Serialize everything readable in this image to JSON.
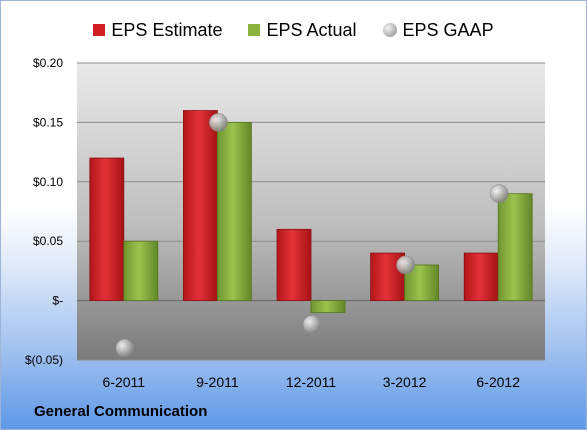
{
  "legend": {
    "estimate": "EPS Estimate",
    "actual": "EPS Actual",
    "gaap": "EPS GAAP"
  },
  "company": "General Communication",
  "colors": {
    "estimate": "#d11f23",
    "actual": "#8bb43f",
    "gaap": "#a9a9a9"
  },
  "chart_data": {
    "type": "bar",
    "categories": [
      "6-2011",
      "9-2011",
      "12-2011",
      "3-2012",
      "6-2012"
    ],
    "series": [
      {
        "name": "EPS Estimate",
        "values": [
          0.12,
          0.16,
          0.06,
          0.04,
          0.04
        ]
      },
      {
        "name": "EPS Actual",
        "values": [
          0.05,
          0.15,
          -0.01,
          0.03,
          0.09
        ]
      },
      {
        "name": "EPS GAAP",
        "values": [
          -0.04,
          0.15,
          -0.02,
          0.03,
          0.09
        ]
      }
    ],
    "ylim": [
      -0.05,
      0.2
    ],
    "yticks": [
      -0.05,
      0,
      0.05,
      0.1,
      0.15,
      0.2
    ],
    "ytick_labels": [
      "$(0.05)",
      "$-",
      "$0.05",
      "$0.10",
      "$0.15",
      "$0.20"
    ],
    "grid": true,
    "legend_position": "top"
  }
}
